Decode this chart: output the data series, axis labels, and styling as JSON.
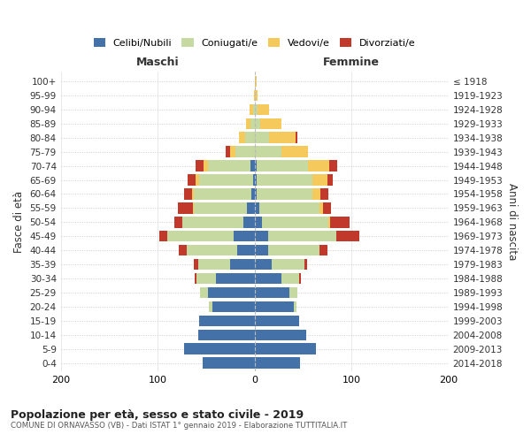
{
  "age_groups": [
    "0-4",
    "5-9",
    "10-14",
    "15-19",
    "20-24",
    "25-29",
    "30-34",
    "35-39",
    "40-44",
    "45-49",
    "50-54",
    "55-59",
    "60-64",
    "65-69",
    "70-74",
    "75-79",
    "80-84",
    "85-89",
    "90-94",
    "95-99",
    "100+"
  ],
  "birth_years": [
    "2014-2018",
    "2009-2013",
    "2004-2008",
    "1999-2003",
    "1994-1998",
    "1989-1993",
    "1984-1988",
    "1979-1983",
    "1974-1978",
    "1969-1973",
    "1964-1968",
    "1959-1963",
    "1954-1958",
    "1949-1953",
    "1944-1948",
    "1939-1943",
    "1934-1938",
    "1929-1933",
    "1924-1928",
    "1919-1923",
    "≤ 1918"
  ],
  "males_celibe": [
    54,
    73,
    58,
    57,
    44,
    48,
    40,
    25,
    18,
    22,
    12,
    8,
    3,
    2,
    4,
    0,
    0,
    0,
    0,
    0,
    0
  ],
  "males_coniugato": [
    0,
    0,
    0,
    0,
    3,
    8,
    20,
    33,
    52,
    68,
    63,
    55,
    60,
    55,
    44,
    20,
    10,
    4,
    2,
    0,
    0
  ],
  "males_vedovo": [
    0,
    0,
    0,
    0,
    0,
    0,
    0,
    0,
    0,
    0,
    0,
    1,
    2,
    4,
    5,
    5,
    6,
    5,
    3,
    1,
    0
  ],
  "males_divorziato": [
    0,
    0,
    0,
    0,
    0,
    0,
    2,
    5,
    8,
    8,
    8,
    15,
    8,
    8,
    8,
    5,
    0,
    0,
    0,
    0,
    0
  ],
  "females_celibe": [
    47,
    63,
    53,
    46,
    40,
    36,
    28,
    18,
    14,
    14,
    8,
    5,
    2,
    2,
    2,
    0,
    0,
    0,
    0,
    0,
    0
  ],
  "females_coniugato": [
    0,
    0,
    0,
    0,
    3,
    8,
    18,
    33,
    53,
    70,
    68,
    62,
    58,
    58,
    53,
    28,
    15,
    6,
    3,
    0,
    0
  ],
  "females_vedovo": [
    0,
    0,
    0,
    0,
    0,
    0,
    0,
    0,
    0,
    0,
    2,
    4,
    8,
    15,
    22,
    27,
    27,
    22,
    12,
    3,
    2
  ],
  "females_divorziato": [
    0,
    0,
    0,
    0,
    0,
    0,
    2,
    3,
    8,
    24,
    20,
    8,
    8,
    6,
    8,
    0,
    2,
    0,
    0,
    0,
    0
  ],
  "color_celibe": "#4472a8",
  "color_coniugato": "#c5d9a0",
  "color_vedovo": "#f5c95c",
  "color_divorziato": "#c0392b",
  "title1": "Popolazione per età, sesso e stato civile - 2019",
  "title2": "COMUNE DI ORNAVASSO (VB) - Dati ISTAT 1° gennaio 2019 - Elaborazione TUTTITALIA.IT",
  "xlabel_left": "Maschi",
  "xlabel_right": "Femmine",
  "ylabel_left": "Fasce di età",
  "ylabel_right": "Anni di nascita",
  "legend_labels": [
    "Celibi/Nubili",
    "Coniugati/e",
    "Vedovi/e",
    "Divorziati/e"
  ],
  "xlim": 200,
  "bar_height": 0.78,
  "bg_color": "#ffffff",
  "grid_color": "#cccccc"
}
